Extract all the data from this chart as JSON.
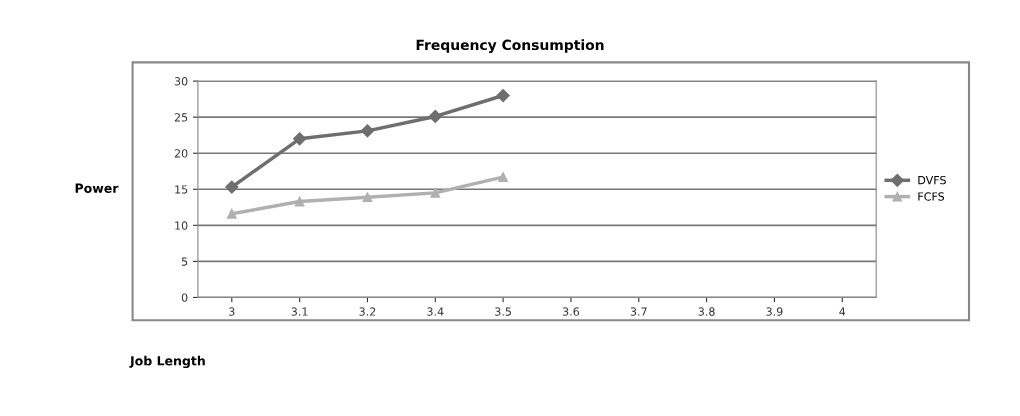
{
  "chart_data": {
    "type": "line",
    "title": "Frequency Consumption",
    "xlabel": "Job Length",
    "ylabel": "Power",
    "categories": [
      "3",
      "3.1",
      "3.2",
      "3.4",
      "3.5",
      "3.6",
      "3.7",
      "3.8",
      "3.9",
      "4"
    ],
    "series": [
      {
        "name": "DVFS",
        "color": "#6e6e6e",
        "marker": "diamond",
        "values": [
          15.3,
          22,
          23.1,
          25.1,
          28,
          null,
          null,
          null,
          null,
          null
        ]
      },
      {
        "name": "FCFS",
        "color": "#b0b0b0",
        "marker": "triangle",
        "values": [
          11.6,
          13.3,
          13.9,
          14.5,
          16.7,
          null,
          null,
          null,
          null,
          null
        ]
      }
    ],
    "ylim": [
      0,
      30
    ],
    "yticks": [
      0,
      5,
      10,
      15,
      20,
      25,
      30
    ],
    "grid": "y",
    "legend": "right"
  }
}
